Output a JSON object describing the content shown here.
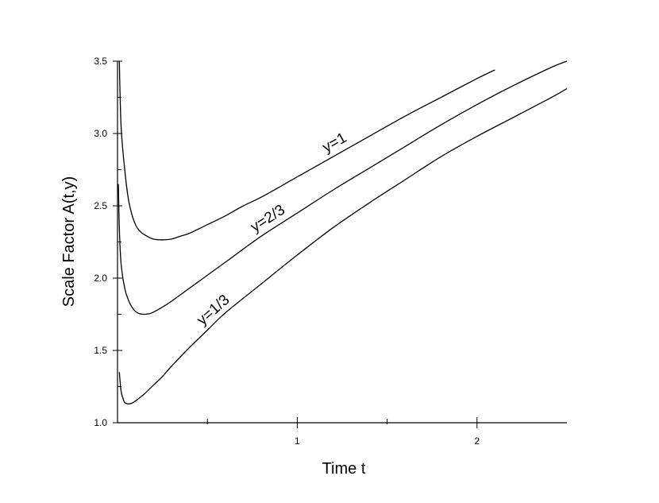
{
  "chart_data": {
    "type": "line",
    "title": "",
    "xlabel": "Time t",
    "ylabel": "Scale Factor A(t,y)",
    "xlim": [
      0,
      2.5
    ],
    "ylim": [
      1.0,
      3.5
    ],
    "x_ticks": [
      {
        "value": 1,
        "label": "1"
      },
      {
        "value": 2,
        "label": "2"
      }
    ],
    "x_minor_ticks": [
      0.5,
      1.5
    ],
    "y_ticks": [
      {
        "value": 1.0,
        "label": "1.0"
      },
      {
        "value": 1.5,
        "label": "1.5"
      },
      {
        "value": 2.0,
        "label": "2.0"
      },
      {
        "value": 2.5,
        "label": "2.5"
      },
      {
        "value": 3.0,
        "label": "3.0"
      },
      {
        "value": 3.5,
        "label": "3.5"
      }
    ],
    "y_minor_ticks": [
      1.25,
      1.75,
      2.25,
      2.75,
      3.25
    ],
    "grid": false,
    "legend": "none",
    "series": [
      {
        "label": "y=1",
        "x": [
          0.01,
          0.02,
          0.04,
          0.06,
          0.08,
          0.1,
          0.12,
          0.15,
          0.2,
          0.25,
          0.3,
          0.35,
          0.4,
          0.5,
          0.6,
          0.7,
          0.8,
          1.0,
          1.2,
          1.4,
          1.6,
          1.8,
          2.0,
          2.1
        ],
        "y": [
          3.5,
          3.05,
          2.75,
          2.55,
          2.44,
          2.37,
          2.33,
          2.3,
          2.27,
          2.265,
          2.27,
          2.29,
          2.31,
          2.37,
          2.43,
          2.5,
          2.56,
          2.7,
          2.84,
          2.98,
          3.12,
          3.25,
          3.38,
          3.44
        ]
      },
      {
        "label": "y=2/3",
        "x": [
          0.005,
          0.01,
          0.02,
          0.04,
          0.06,
          0.08,
          0.1,
          0.12,
          0.15,
          0.18,
          0.2,
          0.25,
          0.3,
          0.4,
          0.5,
          0.6,
          0.8,
          1.0,
          1.2,
          1.4,
          1.6,
          1.8,
          2.0,
          2.2,
          2.4,
          2.5
        ],
        "y": [
          2.65,
          2.35,
          2.1,
          1.93,
          1.85,
          1.8,
          1.77,
          1.755,
          1.75,
          1.755,
          1.765,
          1.8,
          1.84,
          1.93,
          2.02,
          2.11,
          2.29,
          2.45,
          2.61,
          2.76,
          2.91,
          3.06,
          3.2,
          3.33,
          3.45,
          3.5
        ]
      },
      {
        "label": "y=1/3",
        "x": [
          0.01,
          0.02,
          0.03,
          0.04,
          0.06,
          0.08,
          0.1,
          0.12,
          0.15,
          0.2,
          0.25,
          0.3,
          0.4,
          0.5,
          0.6,
          0.8,
          1.0,
          1.2,
          1.4,
          1.6,
          1.8,
          2.0,
          2.2,
          2.4,
          2.5
        ],
        "y": [
          1.35,
          1.22,
          1.17,
          1.14,
          1.13,
          1.135,
          1.15,
          1.17,
          1.2,
          1.26,
          1.32,
          1.39,
          1.52,
          1.64,
          1.76,
          1.96,
          2.16,
          2.35,
          2.52,
          2.68,
          2.84,
          2.98,
          3.11,
          3.24,
          3.31
        ]
      }
    ]
  }
}
